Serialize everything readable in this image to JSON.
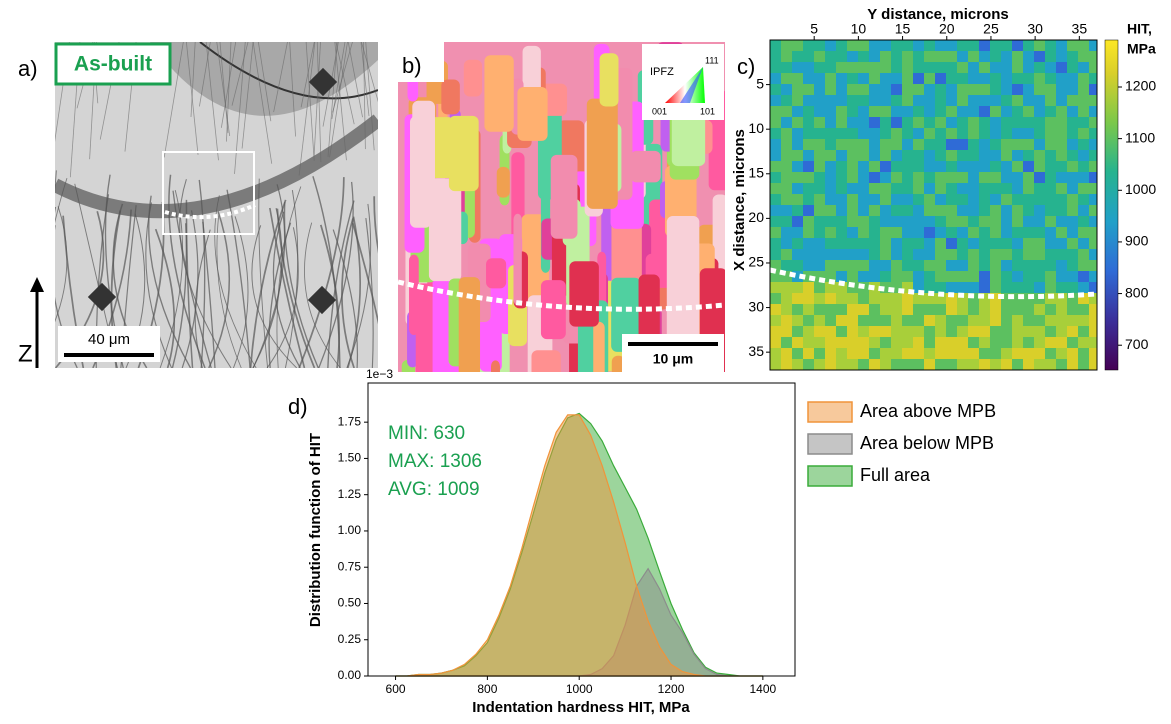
{
  "panels": {
    "a": {
      "label": "a)",
      "tag": "As-built",
      "scale_bar": "40 μm",
      "axis_label": "Z"
    },
    "b": {
      "label": "b)",
      "legend_title": "IPFZ",
      "corners": [
        "111",
        "001",
        "101"
      ],
      "scale_bar": "10 μm"
    },
    "c": {
      "label": "c)",
      "x_label": "Y distance, microns",
      "y_label": "X distance, microns",
      "xlim": [
        0,
        37
      ],
      "ylim": [
        0,
        37
      ],
      "xticks": [
        5,
        10,
        15,
        20,
        25,
        30,
        35
      ],
      "yticks": [
        5,
        10,
        15,
        20,
        25,
        30,
        35
      ],
      "colorbar_title": [
        "HIT,",
        "MPa"
      ],
      "colorbar_lim": [
        652,
        1291
      ],
      "colorbar_ticks": [
        700,
        800,
        900,
        1000,
        1100,
        1200
      ]
    }
  },
  "chart_data": {
    "type": "area",
    "panel_label": "d)",
    "x_label": "Indentation hardness HIT, MPa",
    "y_label": "Distribution function of HIT",
    "y_multiplier": "1e−3",
    "annotations": [
      "MIN: 630",
      "MAX: 1306",
      "AVG: 1009"
    ],
    "x": [
      600,
      625,
      650,
      675,
      700,
      725,
      750,
      775,
      800,
      825,
      850,
      875,
      900,
      925,
      950,
      975,
      1000,
      1025,
      1050,
      1075,
      1100,
      1125,
      1150,
      1175,
      1200,
      1225,
      1250,
      1275,
      1300,
      1325,
      1350,
      1375,
      1400
    ],
    "series": [
      {
        "name": "Area above MPB",
        "color": "#f0943a",
        "values": [
          0,
          0,
          0.01,
          0.01,
          0.02,
          0.04,
          0.08,
          0.15,
          0.25,
          0.42,
          0.62,
          0.88,
          1.17,
          1.45,
          1.68,
          1.8,
          1.8,
          1.66,
          1.45,
          1.2,
          0.92,
          0.62,
          0.38,
          0.2,
          0.08,
          0.03,
          0.01,
          0,
          0,
          0,
          0,
          0,
          0
        ]
      },
      {
        "name": "Area below MPB",
        "color": "#8c8c8c",
        "values": [
          0,
          0,
          0,
          0,
          0,
          0,
          0,
          0,
          0,
          0,
          0,
          0,
          0,
          0,
          0,
          0,
          0,
          0.01,
          0.05,
          0.14,
          0.35,
          0.62,
          0.74,
          0.6,
          0.42,
          0.3,
          0.15,
          0.05,
          0.01,
          0,
          0,
          0,
          0
        ]
      },
      {
        "name": "Full area",
        "color": "#3aab3a",
        "values": [
          0,
          0,
          0.01,
          0.01,
          0.02,
          0.04,
          0.07,
          0.14,
          0.23,
          0.4,
          0.6,
          0.85,
          1.12,
          1.4,
          1.63,
          1.78,
          1.81,
          1.74,
          1.62,
          1.45,
          1.3,
          1.15,
          0.95,
          0.72,
          0.5,
          0.32,
          0.16,
          0.06,
          0.02,
          0.01,
          0,
          0,
          0
        ]
      }
    ],
    "xlim": [
      540,
      1470
    ],
    "ylim": [
      0,
      2.02
    ],
    "xticks": [
      600,
      800,
      1000,
      1200,
      1400
    ],
    "yticks": [
      {
        "value": 0,
        "label": "0.00"
      },
      0.25,
      {
        "value": 0.5,
        "label": "0.50"
      },
      0.75,
      {
        "value": 1,
        "label": "1.00"
      },
      1.25,
      {
        "value": 1.5,
        "label": "1.50"
      },
      1.75
    ],
    "legend": "outside-right"
  }
}
